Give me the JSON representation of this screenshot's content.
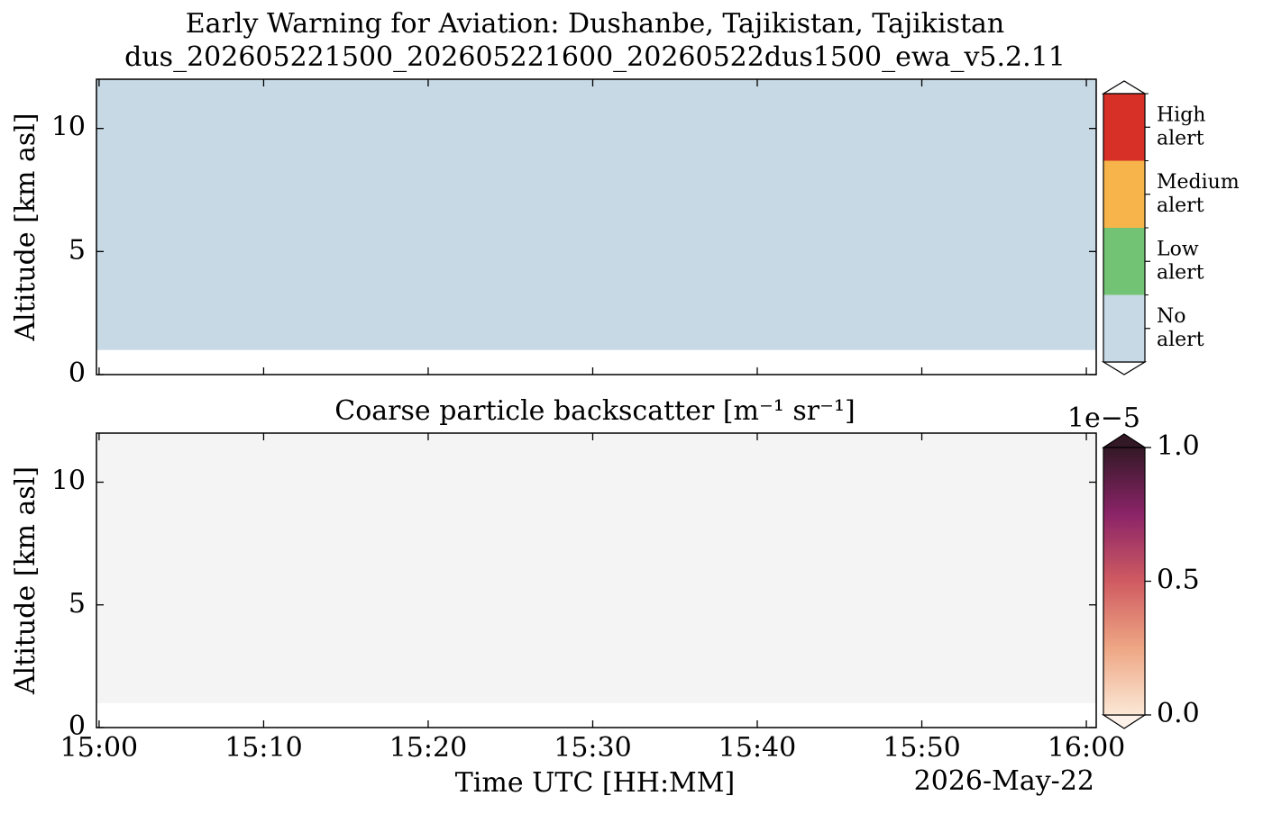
{
  "chart_data": [
    {
      "type": "alert",
      "title": "Early Warning for Aviation: Dushanbe, Tajikistan, Tajikistan",
      "subtitle": "dus_202605221500_202605221600_20260522dus1500_ewa_v5.2.11",
      "ylabel": "Altitude [km asl]",
      "ylim": [
        0,
        12
      ],
      "yticks": [
        0,
        5,
        10
      ],
      "levels": [
        {
          "label": [
            "No",
            "alert"
          ],
          "color": "#c6d9e4"
        },
        {
          "label": [
            "Low",
            "alert"
          ],
          "color": "#72c474"
        },
        {
          "label": [
            "Medium",
            "alert"
          ],
          "color": "#f6b44b"
        },
        {
          "label": [
            "High",
            "alert"
          ],
          "color": "#d73027"
        }
      ],
      "layer": {
        "x": [
          -0.16,
          60.6
        ],
        "y": [
          1,
          12
        ],
        "level": 0
      }
    },
    {
      "type": "heatmap",
      "title": "Coarse particle backscatter [m⁻¹ sr⁻¹]",
      "ylabel": "Altitude [km asl]",
      "xlabel": "Time UTC [HH:MM]",
      "date": "2026-May-22",
      "ylim": [
        0,
        12
      ],
      "yticks": [
        0,
        5,
        10
      ],
      "xlim": [
        -0.16,
        60.6
      ],
      "xticks": [
        {
          "value": 0,
          "label": "15:00"
        },
        {
          "value": 10,
          "label": "15:10"
        },
        {
          "value": 20,
          "label": "15:20"
        },
        {
          "value": 30,
          "label": "15:30"
        },
        {
          "value": 40,
          "label": "15:40"
        },
        {
          "value": 50,
          "label": "15:50"
        },
        {
          "value": 60,
          "label": "16:00"
        }
      ],
      "clim": [
        0,
        1
      ],
      "cticks": [
        {
          "value": 0,
          "label": "0.0"
        },
        0.5,
        {
          "value": 1,
          "label": "1.0"
        }
      ],
      "offset_label": "1e−5",
      "colormap": [
        "#fbe8d6",
        "#eea684",
        "#cf5b61",
        "#8b2468",
        "#331826"
      ],
      "layer": {
        "x": [
          -0.16,
          60.6
        ],
        "y": [
          1,
          12
        ],
        "value": 0,
        "color": "#f4f4f4"
      }
    }
  ]
}
